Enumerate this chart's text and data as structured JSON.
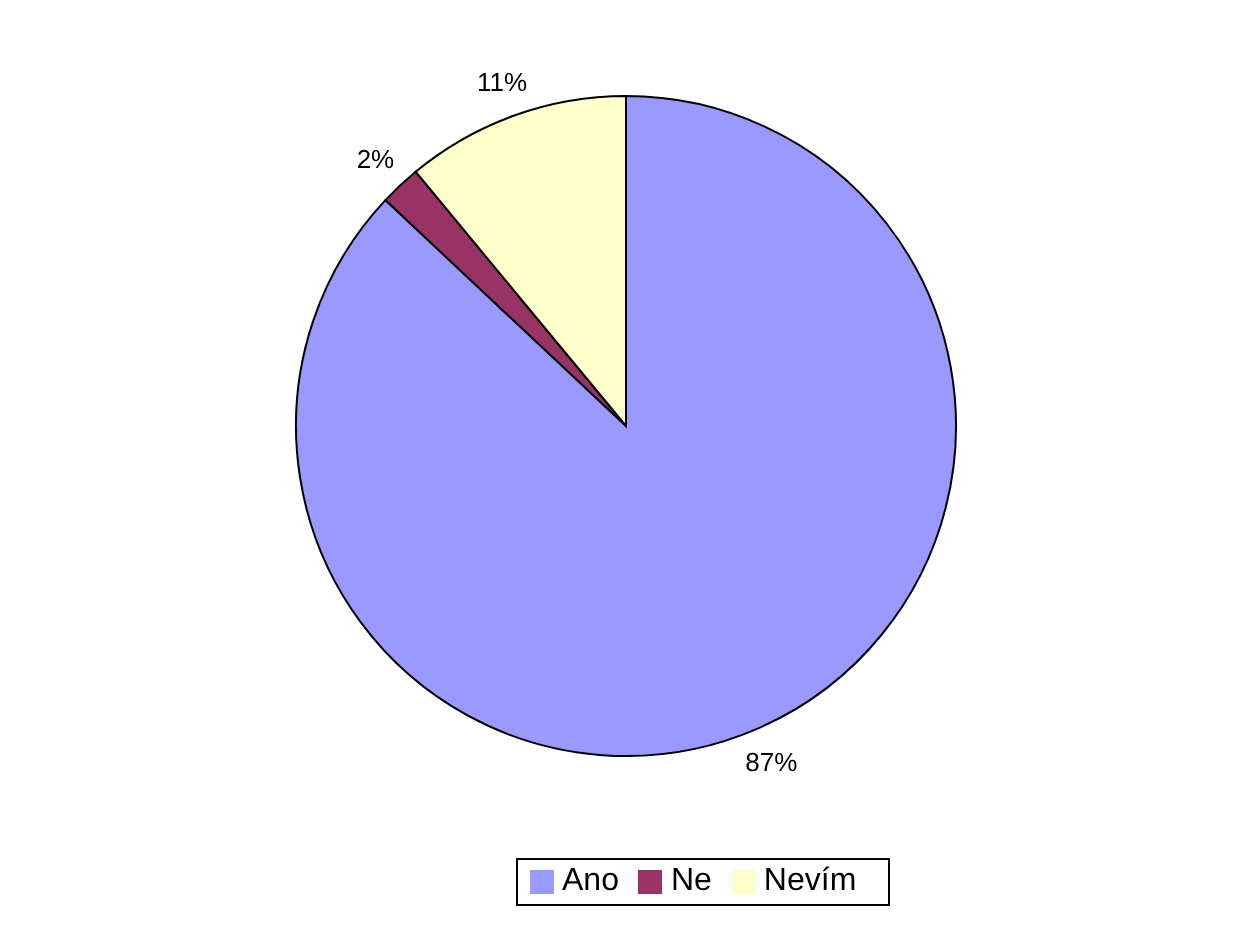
{
  "chart_data": {
    "type": "pie",
    "categories": [
      "Ano",
      "Ne",
      "Nevím"
    ],
    "values": [
      87,
      2,
      11
    ],
    "colors": [
      "#9999ff",
      "#993366",
      "#ffffcc"
    ],
    "value_labels": [
      "87%",
      "2%",
      "11%"
    ],
    "legend": "bottom"
  }
}
